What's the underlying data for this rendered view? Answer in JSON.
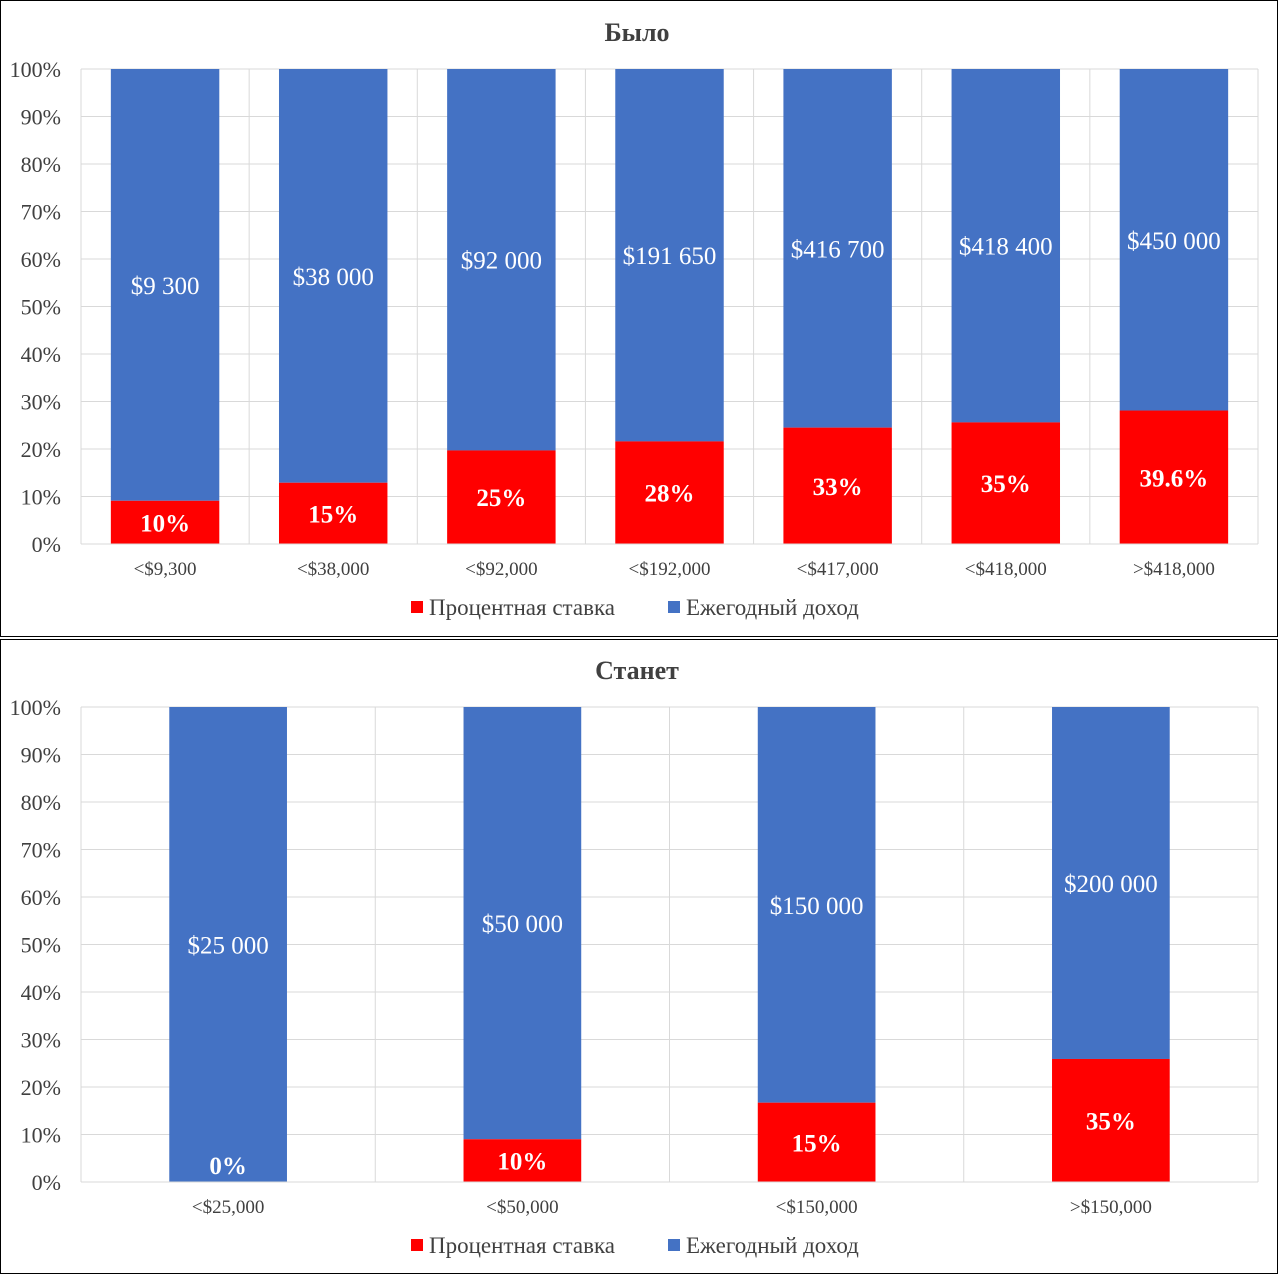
{
  "chart_data": [
    {
      "type": "bar",
      "stacked": true,
      "percent_stacked": true,
      "title": "Было",
      "categories": [
        "<$9,300",
        "<$38,000",
        "<$92,000",
        "<$192,000",
        "<$417,000",
        "<$418,000",
        ">$418,000"
      ],
      "yticks": [
        "0%",
        "10%",
        "20%",
        "30%",
        "40%",
        "50%",
        "60%",
        "70%",
        "80%",
        "90%",
        "100%"
      ],
      "ylim": [
        0,
        100
      ],
      "grid": true,
      "legend_position": "bottom",
      "series": [
        {
          "name": "Процентная ставка",
          "color": "#ff0000",
          "share_percent": [
            9.1,
            12.9,
            19.7,
            21.6,
            24.5,
            25.6,
            28.1
          ],
          "labels": [
            "10%",
            "15%",
            "25%",
            "28%",
            "33%",
            "35%",
            "39.6%"
          ]
        },
        {
          "name": "Ежегодный доход",
          "color": "#4472c4",
          "share_percent": [
            90.9,
            87.1,
            80.3,
            78.4,
            75.5,
            74.4,
            71.9
          ],
          "labels": [
            "$9 300",
            "$38 000",
            "$92 000",
            "$191 650",
            "$416 700",
            "$418 400",
            "$450 000"
          ]
        }
      ]
    },
    {
      "type": "bar",
      "stacked": true,
      "percent_stacked": true,
      "title": "Станет",
      "categories": [
        "<$25,000",
        "<$50,000",
        "<$150,000",
        ">$150,000"
      ],
      "yticks": [
        "0%",
        "10%",
        "20%",
        "30%",
        "40%",
        "50%",
        "60%",
        "70%",
        "80%",
        "90%",
        "100%"
      ],
      "ylim": [
        0,
        100
      ],
      "grid": true,
      "legend_position": "bottom",
      "series": [
        {
          "name": "Процентная ставка",
          "color": "#ff0000",
          "share_percent": [
            0,
            9,
            16.7,
            25.9
          ],
          "labels": [
            "0%",
            "10%",
            "15%",
            "35%"
          ]
        },
        {
          "name": "Ежегодный доход",
          "color": "#4472c4",
          "share_percent": [
            100,
            91,
            83.3,
            74.1
          ],
          "labels": [
            "$25 000",
            "$50 000",
            "$150 000",
            "$200 000"
          ]
        }
      ]
    }
  ]
}
